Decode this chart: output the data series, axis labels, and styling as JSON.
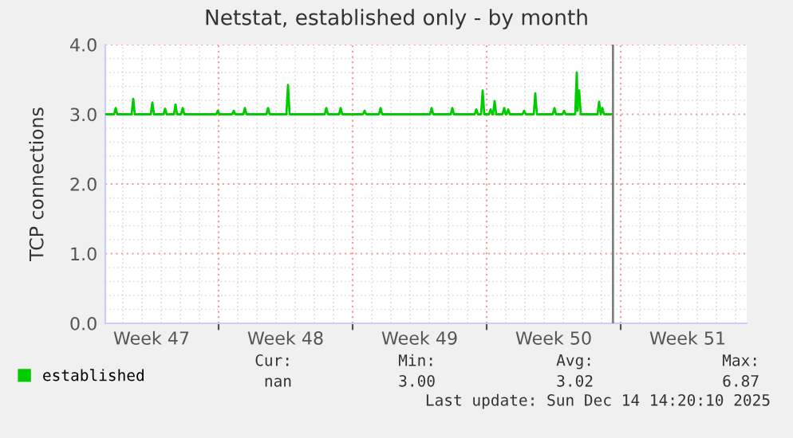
{
  "chart_data": {
    "type": "line",
    "title": "Netstat, established only - by month",
    "ylabel": "TCP connections",
    "x": [
      "2025-11-18T02:00",
      "2025-11-18T13:00",
      "2025-11-18T15:00",
      "2025-11-18T17:00",
      "2025-11-19T11:00",
      "2025-11-19T13:00",
      "2025-11-19T15:00",
      "2025-11-20T11:00",
      "2025-11-20T13:00",
      "2025-11-20T15:00",
      "2025-11-21T03:00",
      "2025-11-21T05:00",
      "2025-11-21T07:00",
      "2025-11-21T16:00",
      "2025-11-21T18:00",
      "2025-11-21T20:00",
      "2025-11-22T01:00",
      "2025-11-22T03:00",
      "2025-11-22T05:00",
      "2025-11-23T21:00",
      "2025-11-23T23:00",
      "2025-11-24T01:00",
      "2025-11-24T17:00",
      "2025-11-24T19:00",
      "2025-11-24T21:00",
      "2025-11-25T07:00",
      "2025-11-25T09:00",
      "2025-11-25T11:00",
      "2025-11-26T12:00",
      "2025-11-26T14:00",
      "2025-11-26T16:00",
      "2025-11-27T13:00",
      "2025-11-27T15:00",
      "2025-11-27T17:00",
      "2025-11-29T13:00",
      "2025-11-29T15:00",
      "2025-11-29T17:00",
      "2025-11-30T07:00",
      "2025-11-30T09:00",
      "2025-11-30T11:00",
      "2025-12-01T13:00",
      "2025-12-01T15:00",
      "2025-12-01T17:00",
      "2025-12-02T09:00",
      "2025-12-02T11:00",
      "2025-12-02T13:00",
      "2025-12-05T01:00",
      "2025-12-05T03:00",
      "2025-12-05T05:00",
      "2025-12-06T03:00",
      "2025-12-06T05:00",
      "2025-12-06T07:00",
      "2025-12-07T09:00",
      "2025-12-07T11:00",
      "2025-12-07T13:00",
      "2025-12-07T17:00",
      "2025-12-07T19:00",
      "2025-12-07T21:00",
      "2025-12-08T03:00",
      "2025-12-08T05:00",
      "2025-12-08T07:00",
      "2025-12-08T08:00",
      "2025-12-08T10:00",
      "2025-12-08T12:00",
      "2025-12-08T20:00",
      "2025-12-08T22:00",
      "2025-12-09T00:00",
      "2025-12-09T01:00",
      "2025-12-09T03:00",
      "2025-12-09T05:00",
      "2025-12-09T21:00",
      "2025-12-09T23:00",
      "2025-12-10T01:00",
      "2025-12-10T11:00",
      "2025-12-10T13:00",
      "2025-12-10T15:00",
      "2025-12-11T11:00",
      "2025-12-11T13:00",
      "2025-12-11T15:00",
      "2025-12-11T23:00",
      "2025-12-12T01:00",
      "2025-12-12T03:00",
      "2025-12-12T15:00",
      "2025-12-12T17:00",
      "2025-12-12T18:00",
      "2025-12-12T20:00",
      "2025-12-12T22:00",
      "2025-12-13T19:00",
      "2025-12-13T21:00",
      "2025-12-13T23:00",
      "2025-12-14T01:00",
      "2025-12-14T03:00",
      "2025-12-14T12:00"
    ],
    "series": [
      {
        "name": "established",
        "color": "#00cc00",
        "values": [
          3.0,
          3.0,
          3.09,
          3.0,
          3.0,
          3.22,
          3.0,
          3.0,
          3.17,
          3.0,
          3.0,
          3.08,
          3.0,
          3.0,
          3.14,
          3.0,
          3.0,
          3.09,
          3.0,
          3.0,
          3.05,
          3.0,
          3.0,
          3.05,
          3.0,
          3.0,
          3.09,
          3.0,
          3.0,
          3.09,
          3.0,
          3.0,
          3.42,
          3.0,
          3.0,
          3.09,
          3.0,
          3.0,
          3.09,
          3.0,
          3.0,
          3.05,
          3.0,
          3.0,
          3.09,
          3.0,
          3.0,
          3.09,
          3.0,
          3.0,
          3.09,
          3.0,
          3.0,
          3.07,
          3.0,
          3.0,
          3.34,
          3.0,
          3.0,
          3.07,
          3.0,
          3.0,
          3.19,
          3.0,
          3.0,
          3.09,
          3.0,
          3.0,
          3.07,
          3.0,
          3.0,
          3.05,
          3.0,
          3.0,
          3.3,
          3.0,
          3.0,
          3.09,
          3.0,
          3.0,
          3.05,
          3.0,
          3.0,
          3.6,
          3.05,
          3.34,
          3.0,
          3.0,
          3.18,
          3.0,
          3.09,
          3.0,
          3.0
        ]
      }
    ],
    "xlim": [
      "2025-11-18T02:00",
      "2025-12-21T14:00"
    ],
    "xticks": [
      {
        "value": "2025-11-20T12:00",
        "label": "Week 47"
      },
      {
        "value": "2025-11-24T00:00",
        "label": null
      },
      {
        "value": "2025-11-27T12:00",
        "label": "Week 48"
      },
      {
        "value": "2025-12-01T00:00",
        "label": null
      },
      {
        "value": "2025-12-04T12:00",
        "label": "Week 49"
      },
      {
        "value": "2025-12-08T00:00",
        "label": null
      },
      {
        "value": "2025-12-11T12:00",
        "label": "Week 50"
      },
      {
        "value": "2025-12-15T00:00",
        "label": null
      },
      {
        "value": "2025-12-18T12:00",
        "label": "Week 51"
      }
    ],
    "ylim": [
      0,
      4
    ],
    "yticks": [
      {
        "value": 0,
        "label": "0.0"
      },
      {
        "value": 1,
        "label": "1.0"
      },
      {
        "value": 2,
        "label": "2.0"
      },
      {
        "value": 3,
        "label": "3.0"
      },
      {
        "value": 4,
        "label": "4.0"
      }
    ],
    "ref_lines": [
      {
        "axis": "x",
        "value": "2025-12-14T14:20",
        "label": null,
        "color": "#808080"
      }
    ],
    "grid": true,
    "legend": "bottom",
    "marker": "none",
    "line_style": "solid",
    "annotations": [
      "Cur:",
      "Min:",
      "Avg:",
      "Max:",
      "nan",
      "3.00",
      "3.02",
      "6.87",
      "Last update: Sun Dec 14 14:20:10 2025"
    ]
  }
}
